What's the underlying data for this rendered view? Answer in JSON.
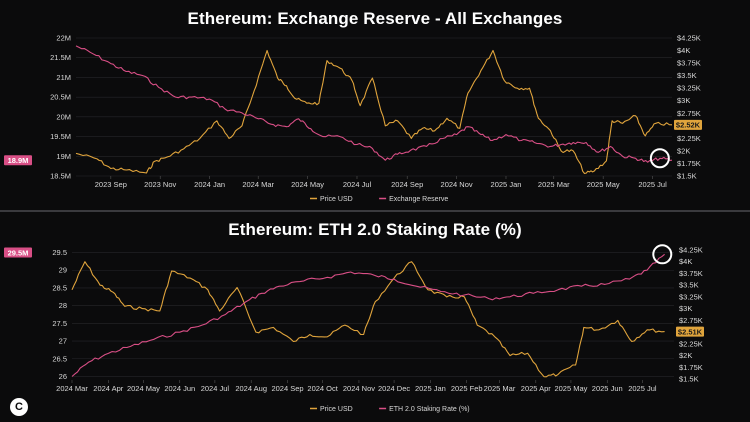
{
  "colors": {
    "background": "#0b0b0c",
    "price": "#e0a43c",
    "reserve": "#d94f86",
    "staking": "#d94f86",
    "grid": "#26262a",
    "highlight_circle": "#ffffff"
  },
  "logo": {
    "glyph": "C",
    "icon": "copyright-logo-icon"
  },
  "chart_data": [
    {
      "type": "line",
      "title": "Ethereum: Exchange Reserve - All Exchanges",
      "x_range": [
        "2023-07-20",
        "2025-07-25"
      ],
      "x_tick_labels": [
        "2023 Sep",
        "2023 Nov",
        "2024 Jan",
        "2024 Mar",
        "2024 May",
        "2024 Jul",
        "2024 Sep",
        "2024 Nov",
        "2025 Jan",
        "2025 Mar",
        "2025 May",
        "2025 Jul"
      ],
      "x_ticks": [
        "2023-09-01",
        "2023-11-01",
        "2024-01-01",
        "2024-03-01",
        "2024-05-01",
        "2024-07-01",
        "2024-09-01",
        "2024-11-01",
        "2025-01-01",
        "2025-03-01",
        "2025-05-01",
        "2025-07-01"
      ],
      "y_left": {
        "ticks": [
          18.5,
          19,
          19.5,
          20,
          20.5,
          21,
          21.5,
          22
        ],
        "tick_labels": [
          "18.5M",
          "19M",
          "19.5M",
          "20M",
          "20.5M",
          "21M",
          "21.5M",
          "22M"
        ],
        "range": [
          18.5,
          22
        ],
        "unit": "M"
      },
      "y_right": {
        "ticks": [
          1500,
          1750,
          2000,
          2250,
          2500,
          2750,
          3000,
          3250,
          3500,
          3750,
          4000,
          4250
        ],
        "tick_labels": [
          "$1.5K",
          "$1.75K",
          "$2K",
          "$2.25K",
          "$2.5K",
          "$2.75K",
          "$3K",
          "$3.25K",
          "$3.5K",
          "$3.75K",
          "$4K",
          "$4.25K"
        ],
        "range": [
          1500,
          4250
        ]
      },
      "badges": [
        {
          "side": "left",
          "label": "18.9M",
          "value": 18.9,
          "color": "#d94f86"
        },
        {
          "side": "right",
          "label": "$2.52K",
          "value": 2520,
          "color": "#e0a43c"
        }
      ],
      "highlight": {
        "date": "2025-07-10",
        "axis": "left",
        "value": 18.95
      },
      "legend_position": "bottom-center",
      "series": [
        {
          "name": "Price USD",
          "axis": "right",
          "color": "#e0a43c",
          "points": [
            [
              "2023-07-20",
              1950
            ],
            [
              "2023-08-15",
              1840
            ],
            [
              "2023-09-01",
              1650
            ],
            [
              "2023-09-20",
              1620
            ],
            [
              "2023-10-15",
              1560
            ],
            [
              "2023-10-25",
              1790
            ],
            [
              "2023-11-10",
              1880
            ],
            [
              "2023-11-30",
              2040
            ],
            [
              "2023-12-20",
              2250
            ],
            [
              "2024-01-10",
              2600
            ],
            [
              "2024-01-25",
              2250
            ],
            [
              "2024-02-10",
              2500
            ],
            [
              "2024-02-25",
              3200
            ],
            [
              "2024-03-12",
              4000
            ],
            [
              "2024-03-25",
              3450
            ],
            [
              "2024-04-05",
              3300
            ],
            [
              "2024-04-15",
              3050
            ],
            [
              "2024-04-30",
              2950
            ],
            [
              "2024-05-15",
              2950
            ],
            [
              "2024-05-25",
              3800
            ],
            [
              "2024-06-10",
              3650
            ],
            [
              "2024-06-25",
              3400
            ],
            [
              "2024-07-05",
              2900
            ],
            [
              "2024-07-20",
              3450
            ],
            [
              "2024-08-05",
              2500
            ],
            [
              "2024-08-20",
              2600
            ],
            [
              "2024-09-06",
              2250
            ],
            [
              "2024-09-20",
              2450
            ],
            [
              "2024-10-05",
              2400
            ],
            [
              "2024-10-20",
              2650
            ],
            [
              "2024-11-05",
              2450
            ],
            [
              "2024-11-15",
              3150
            ],
            [
              "2024-12-01",
              3600
            ],
            [
              "2024-12-16",
              4000
            ],
            [
              "2024-12-30",
              3400
            ],
            [
              "2025-01-15",
              3250
            ],
            [
              "2025-01-30",
              3250
            ],
            [
              "2025-02-10",
              2650
            ],
            [
              "2025-02-25",
              2400
            ],
            [
              "2025-03-10",
              2000
            ],
            [
              "2025-03-25",
              2000
            ],
            [
              "2025-04-08",
              1550
            ],
            [
              "2025-04-20",
              1600
            ],
            [
              "2025-05-05",
              1800
            ],
            [
              "2025-05-12",
              2600
            ],
            [
              "2025-05-25",
              2550
            ],
            [
              "2025-06-10",
              2700
            ],
            [
              "2025-06-22",
              2300
            ],
            [
              "2025-07-05",
              2550
            ],
            [
              "2025-07-25",
              2520
            ]
          ]
        },
        {
          "name": "Exchange Reserve",
          "axis": "left",
          "color": "#d94f86",
          "points": [
            [
              "2023-07-20",
              21.8
            ],
            [
              "2023-08-10",
              21.6
            ],
            [
              "2023-09-01",
              21.35
            ],
            [
              "2023-09-20",
              21.15
            ],
            [
              "2023-10-10",
              21.05
            ],
            [
              "2023-10-30",
              20.75
            ],
            [
              "2023-11-20",
              20.5
            ],
            [
              "2023-12-10",
              20.5
            ],
            [
              "2024-01-01",
              20.45
            ],
            [
              "2024-01-20",
              20.2
            ],
            [
              "2024-02-10",
              20.1
            ],
            [
              "2024-03-01",
              19.95
            ],
            [
              "2024-03-20",
              19.8
            ],
            [
              "2024-04-05",
              19.75
            ],
            [
              "2024-04-20",
              19.95
            ],
            [
              "2024-05-05",
              19.7
            ],
            [
              "2024-05-20",
              19.5
            ],
            [
              "2024-06-10",
              19.5
            ],
            [
              "2024-07-01",
              19.3
            ],
            [
              "2024-07-20",
              19.2
            ],
            [
              "2024-08-05",
              18.9
            ],
            [
              "2024-08-20",
              19.05
            ],
            [
              "2024-09-05",
              19.15
            ],
            [
              "2024-09-25",
              19.25
            ],
            [
              "2024-10-15",
              19.45
            ],
            [
              "2024-11-01",
              19.55
            ],
            [
              "2024-11-15",
              19.75
            ],
            [
              "2024-12-01",
              19.55
            ],
            [
              "2024-12-15",
              19.4
            ],
            [
              "2025-01-01",
              19.55
            ],
            [
              "2025-01-20",
              19.4
            ],
            [
              "2025-02-05",
              19.35
            ],
            [
              "2025-02-25",
              19.25
            ],
            [
              "2025-03-10",
              19.3
            ],
            [
              "2025-03-25",
              19.35
            ],
            [
              "2025-04-10",
              19.35
            ],
            [
              "2025-04-25",
              19.1
            ],
            [
              "2025-05-10",
              19.25
            ],
            [
              "2025-05-25",
              19.0
            ],
            [
              "2025-06-10",
              18.95
            ],
            [
              "2025-06-25",
              18.85
            ],
            [
              "2025-07-10",
              18.95
            ],
            [
              "2025-07-25",
              18.9
            ]
          ]
        }
      ]
    },
    {
      "type": "line",
      "title": "Ethereum: ETH 2.0 Staking Rate (%)",
      "x_range": [
        "2024-03-01",
        "2025-07-28"
      ],
      "x_tick_labels": [
        "2024 Mar",
        "2024 Apr",
        "2024 May",
        "2024 Jun",
        "2024 Jul",
        "2024 Aug",
        "2024 Sep",
        "2024 Oct",
        "2024 Nov",
        "2024 Dec",
        "2025 Jan",
        "2025 Feb",
        "2025 Mar",
        "2025 Apr",
        "2025 May",
        "2025 Jun",
        "2025 Jul"
      ],
      "x_ticks": [
        "2024-03-01",
        "2024-04-01",
        "2024-05-01",
        "2024-06-01",
        "2024-07-01",
        "2024-08-01",
        "2024-09-01",
        "2024-10-01",
        "2024-11-01",
        "2024-12-01",
        "2025-01-01",
        "2025-02-01",
        "2025-03-01",
        "2025-04-01",
        "2025-05-01",
        "2025-06-01",
        "2025-07-01"
      ],
      "y_left": {
        "ticks": [
          26,
          26.5,
          27,
          27.5,
          28,
          28.5,
          29,
          29.5
        ],
        "tick_labels": [
          "26",
          "26.5",
          "27",
          "27.5",
          "28",
          "28.5",
          "29",
          "29.5"
        ],
        "range": [
          25.9,
          29.6
        ]
      },
      "y_right": {
        "ticks": [
          1500,
          1750,
          2000,
          2250,
          2500,
          2750,
          3000,
          3250,
          3500,
          3750,
          4000,
          4250
        ],
        "tick_labels": [
          "$1.5K",
          "$1.75K",
          "$2K",
          "$2.25K",
          "$2.5K",
          "$2.75K",
          "$3K",
          "$3.25K",
          "$3.5K",
          "$3.75K",
          "$4K",
          "$4.25K"
        ],
        "range": [
          1480,
          4270
        ]
      },
      "badges": [
        {
          "side": "left",
          "label": "29.5M",
          "value": 29.5,
          "color": "#d94f86"
        },
        {
          "side": "right",
          "label": "$2.51K",
          "value": 2510,
          "color": "#e0a43c"
        }
      ],
      "highlight": {
        "date": "2025-07-18",
        "axis": "left",
        "value": 29.45
      },
      "legend_position": "bottom-center",
      "series": [
        {
          "name": "Price USD",
          "axis": "right",
          "color": "#e0a43c",
          "points": [
            [
              "2024-03-01",
              3400
            ],
            [
              "2024-03-12",
              4000
            ],
            [
              "2024-03-25",
              3500
            ],
            [
              "2024-04-05",
              3350
            ],
            [
              "2024-04-15",
              3050
            ],
            [
              "2024-04-30",
              3000
            ],
            [
              "2024-05-15",
              2950
            ],
            [
              "2024-05-25",
              3800
            ],
            [
              "2024-06-10",
              3650
            ],
            [
              "2024-06-25",
              3400
            ],
            [
              "2024-07-05",
              2950
            ],
            [
              "2024-07-20",
              3450
            ],
            [
              "2024-08-05",
              2500
            ],
            [
              "2024-08-20",
              2600
            ],
            [
              "2024-09-06",
              2300
            ],
            [
              "2024-09-20",
              2450
            ],
            [
              "2024-10-05",
              2400
            ],
            [
              "2024-10-20",
              2650
            ],
            [
              "2024-11-05",
              2450
            ],
            [
              "2024-11-15",
              3150
            ],
            [
              "2024-12-01",
              3650
            ],
            [
              "2024-12-16",
              4000
            ],
            [
              "2024-12-30",
              3400
            ],
            [
              "2025-01-15",
              3250
            ],
            [
              "2025-01-30",
              3250
            ],
            [
              "2025-02-10",
              2650
            ],
            [
              "2025-02-25",
              2400
            ],
            [
              "2025-03-10",
              2000
            ],
            [
              "2025-03-25",
              2050
            ],
            [
              "2025-04-08",
              1550
            ],
            [
              "2025-04-20",
              1600
            ],
            [
              "2025-05-05",
              1800
            ],
            [
              "2025-05-12",
              2600
            ],
            [
              "2025-05-25",
              2550
            ],
            [
              "2025-06-10",
              2750
            ],
            [
              "2025-06-22",
              2300
            ],
            [
              "2025-07-05",
              2550
            ],
            [
              "2025-07-20",
              2510
            ]
          ]
        },
        {
          "name": "ETH 2.0 Staking Rate (%)",
          "axis": "left",
          "color": "#d94f86",
          "points": [
            [
              "2024-03-01",
              26.0
            ],
            [
              "2024-03-15",
              26.4
            ],
            [
              "2024-04-01",
              26.65
            ],
            [
              "2024-04-20",
              26.85
            ],
            [
              "2024-05-10",
              27.05
            ],
            [
              "2024-06-01",
              27.25
            ],
            [
              "2024-06-20",
              27.45
            ],
            [
              "2024-07-10",
              27.75
            ],
            [
              "2024-07-25",
              28.05
            ],
            [
              "2024-08-10",
              28.35
            ],
            [
              "2024-08-25",
              28.55
            ],
            [
              "2024-09-15",
              28.7
            ],
            [
              "2024-10-05",
              28.8
            ],
            [
              "2024-10-25",
              28.95
            ],
            [
              "2024-11-15",
              28.85
            ],
            [
              "2024-12-01",
              28.75
            ],
            [
              "2024-12-20",
              28.55
            ],
            [
              "2025-01-10",
              28.4
            ],
            [
              "2025-01-30",
              28.3
            ],
            [
              "2025-02-20",
              28.2
            ],
            [
              "2025-03-10",
              28.25
            ],
            [
              "2025-03-30",
              28.35
            ],
            [
              "2025-04-20",
              28.45
            ],
            [
              "2025-05-10",
              28.55
            ],
            [
              "2025-05-30",
              28.6
            ],
            [
              "2025-06-20",
              28.75
            ],
            [
              "2025-07-05",
              29.0
            ],
            [
              "2025-07-20",
              29.45
            ]
          ]
        }
      ]
    }
  ]
}
